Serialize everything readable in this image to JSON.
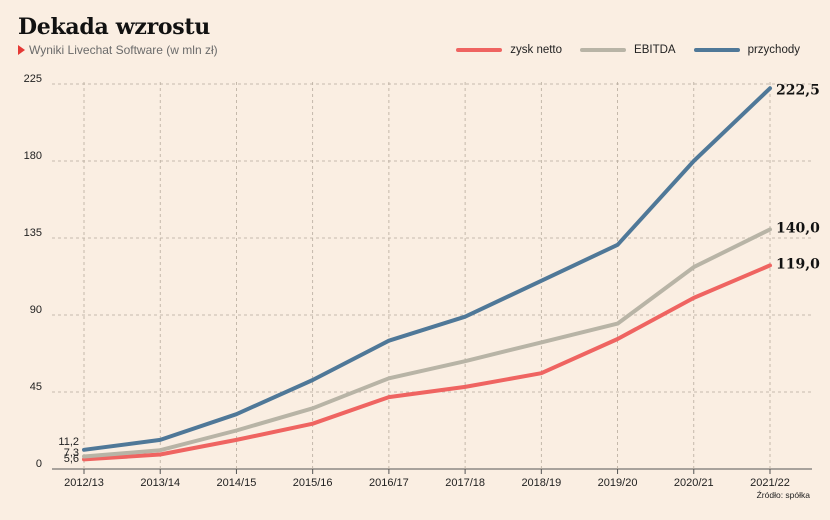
{
  "title": "Dekada wzrostu",
  "subtitle": "Wyniki Livechat Software (w mln zł)",
  "source": "Źródło: spółka",
  "chart_data": {
    "type": "line",
    "categories": [
      "2012/13",
      "2013/14",
      "2014/15",
      "2015/16",
      "2016/17",
      "2017/18",
      "2018/19",
      "2019/20",
      "2020/21",
      "2021/22"
    ],
    "ylim": [
      0,
      225
    ],
    "yticks": [
      0,
      45,
      90,
      135,
      180,
      225
    ],
    "grid": true,
    "legend_position": "top-right",
    "series": [
      {
        "name": "zysk netto",
        "color": "#ef6461",
        "values": [
          5.6,
          8.5,
          17,
          26.5,
          42,
          48,
          56,
          76,
          100,
          119.0
        ]
      },
      {
        "name": "EBITDA",
        "color": "#b8b4a6",
        "values": [
          7.3,
          11,
          22.5,
          35.5,
          53,
          63,
          74,
          85,
          118,
          140.0
        ]
      },
      {
        "name": "przychody",
        "color": "#4f7898",
        "values": [
          11.2,
          17,
          32,
          52,
          75,
          89,
          110,
          131,
          180,
          222.5
        ]
      }
    ],
    "start_labels": [
      "5,6",
      "7,3",
      "11,2"
    ],
    "end_labels": [
      "119,0",
      "140,0",
      "222,5"
    ]
  }
}
